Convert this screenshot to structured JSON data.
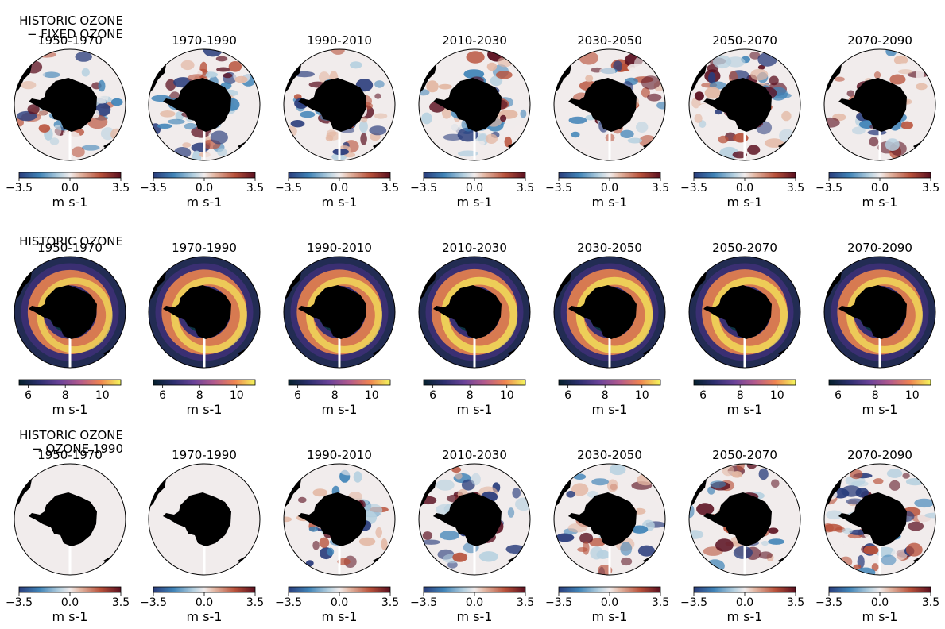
{
  "chart_data": {
    "type": "heatmap",
    "description_labels": {
      "unit_label": "m s-1"
    },
    "periods": [
      "1950-1970",
      "1970-1990",
      "1990-2010",
      "2010-2030",
      "2030-2050",
      "2050-2070",
      "2070-2090"
    ],
    "rows": [
      {
        "row_title_lines": [
          "HISTORIC OZONE",
          "− FIXED OZONE"
        ],
        "colormap": "diverging",
        "vmin": -3.5,
        "vmax": 3.5,
        "ticks": [
          "−3.5",
          "0.0",
          "3.5"
        ],
        "tick_values": [
          -3.5,
          0.0,
          3.5
        ],
        "unit": "m s-1",
        "intensity": [
          0.7,
          0.9,
          0.8,
          0.85,
          0.8,
          0.85,
          0.55
        ]
      },
      {
        "row_title_lines": [
          "HISTORIC OZONE"
        ],
        "colormap": "thermal",
        "vmin": 5.5,
        "vmax": 11.0,
        "ticks": [
          "6",
          "8",
          "10"
        ],
        "tick_values": [
          6,
          8,
          10
        ],
        "unit": "m s-1",
        "intensity": [
          0.75,
          0.85,
          0.85,
          0.95,
          0.95,
          0.9,
          0.85
        ]
      },
      {
        "row_title_lines": [
          "HISTORIC OZONE",
          "− OZONE 1990"
        ],
        "colormap": "diverging",
        "vmin": -3.5,
        "vmax": 3.5,
        "ticks": [
          "−3.5",
          "0.0",
          "3.5"
        ],
        "tick_values": [
          -3.5,
          0.0,
          3.5
        ],
        "unit": "m s-1",
        "intensity": [
          0.0,
          0.0,
          0.6,
          0.7,
          0.65,
          0.75,
          0.9
        ]
      }
    ]
  }
}
